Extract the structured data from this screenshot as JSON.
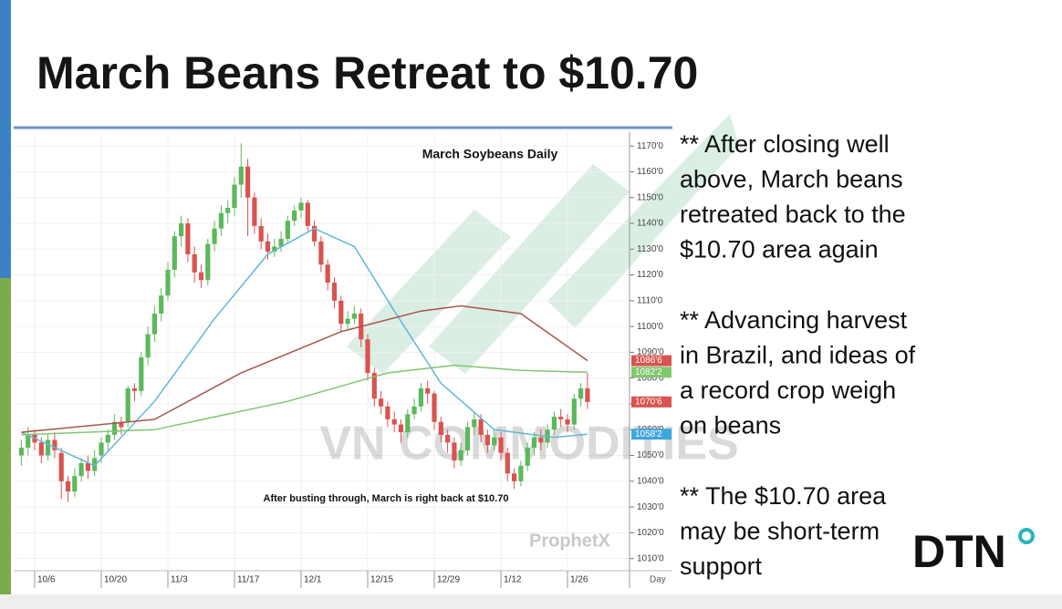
{
  "slide": {
    "title": "March Beans Retreat to $10.70",
    "bullets": [
      [
        "** After closing well",
        "above, March beans",
        "retreated back to the",
        "$10.70 area again"
      ],
      [
        "** Advancing harvest",
        "in Brazil, and ideas of",
        "a record crop weigh",
        "on beans"
      ],
      [
        "** The $10.70 area",
        "may be short-term",
        "support"
      ]
    ],
    "logo": "DTN",
    "watermark": "VN COMMODITIES"
  },
  "chart_data": {
    "type": "candlestick",
    "title": "March Soybeans Daily",
    "annotation": "After busting through, March is right back at $10.70",
    "source": "ProphetX",
    "interval": "Day",
    "categories": [
      null,
      null,
      "10/6",
      null,
      null,
      null,
      null,
      null,
      null,
      null,
      null,
      null,
      "10/20",
      null,
      null,
      null,
      null,
      null,
      null,
      null,
      null,
      null,
      "11/3",
      null,
      null,
      null,
      null,
      null,
      null,
      null,
      null,
      null,
      "11/17",
      null,
      null,
      null,
      null,
      null,
      null,
      null,
      null,
      null,
      "12/1",
      null,
      null,
      null,
      null,
      null,
      null,
      null,
      null,
      null,
      "12/15",
      null,
      null,
      null,
      null,
      null,
      null,
      null,
      null,
      null,
      "12/29",
      null,
      null,
      null,
      null,
      null,
      null,
      null,
      null,
      null,
      "1/12",
      null,
      null,
      null,
      null,
      null,
      null,
      null,
      null,
      null,
      "1/26",
      null,
      null,
      null
    ],
    "open": [
      1050,
      1053,
      1058,
      1055,
      1050,
      1056,
      1051,
      1040,
      1036,
      1042,
      1047,
      1044,
      1050,
      1055,
      1058,
      1063,
      1063,
      1076,
      1075,
      1088,
      1097,
      1105,
      1112,
      1122,
      1135,
      1140,
      1128,
      1121,
      1118,
      1132,
      1138,
      1144,
      1146,
      1155,
      1162,
      1150,
      1139,
      1133,
      1129,
      1131,
      1134,
      1141,
      1145,
      1148,
      1139,
      1133,
      1124,
      1117,
      1110,
      1101,
      1103,
      1105,
      1095,
      1082,
      1072,
      1069,
      1064,
      1062,
      1059,
      1066,
      1069,
      1076,
      1074,
      1063,
      1058,
      1055,
      1048,
      1052,
      1061,
      1064,
      1058,
      1054,
      1057,
      1051,
      1043,
      1040,
      1046,
      1053,
      1057,
      1055,
      1060,
      1065,
      1064,
      1062,
      1072,
      1076
    ],
    "high": [
      1056,
      1061,
      1060,
      1057,
      1058,
      1059,
      1053,
      1042,
      1045,
      1049,
      1050,
      1052,
      1057,
      1060,
      1066,
      1065,
      1077,
      1078,
      1090,
      1100,
      1108,
      1115,
      1125,
      1137,
      1143,
      1142,
      1131,
      1124,
      1134,
      1141,
      1147,
      1149,
      1158,
      1171,
      1165,
      1152,
      1142,
      1136,
      1134,
      1137,
      1143,
      1147,
      1150,
      1149,
      1141,
      1135,
      1126,
      1119,
      1112,
      1106,
      1108,
      1107,
      1097,
      1084,
      1075,
      1071,
      1067,
      1064,
      1068,
      1072,
      1078,
      1079,
      1075,
      1065,
      1060,
      1057,
      1055,
      1063,
      1067,
      1066,
      1060,
      1060,
      1059,
      1053,
      1045,
      1048,
      1055,
      1059,
      1060,
      1062,
      1067,
      1068,
      1066,
      1074,
      1078,
      1082
    ],
    "low": [
      1046,
      1050,
      1052,
      1047,
      1048,
      1049,
      1033,
      1032,
      1034,
      1040,
      1041,
      1042,
      1047,
      1052,
      1056,
      1058,
      1061,
      1071,
      1073,
      1085,
      1094,
      1102,
      1110,
      1119,
      1131,
      1125,
      1117,
      1115,
      1116,
      1129,
      1135,
      1140,
      1143,
      1150,
      1135,
      1136,
      1130,
      1126,
      1127,
      1129,
      1132,
      1139,
      1142,
      1137,
      1131,
      1121,
      1114,
      1107,
      1098,
      1099,
      1101,
      1092,
      1079,
      1069,
      1066,
      1061,
      1059,
      1055,
      1057,
      1064,
      1067,
      1070,
      1060,
      1055,
      1051,
      1045,
      1046,
      1050,
      1058,
      1055,
      1051,
      1052,
      1048,
      1040,
      1037,
      1038,
      1044,
      1050,
      1052,
      1053,
      1058,
      1061,
      1059,
      1060,
      1069,
      1068
    ],
    "close": [
      1053,
      1058,
      1055,
      1050,
      1056,
      1052,
      1040,
      1036,
      1042,
      1047,
      1044,
      1049,
      1055,
      1058,
      1063,
      1061,
      1076,
      1075,
      1088,
      1097,
      1105,
      1112,
      1122,
      1135,
      1140,
      1128,
      1121,
      1118,
      1132,
      1138,
      1144,
      1146,
      1155,
      1162,
      1150,
      1139,
      1133,
      1129,
      1131,
      1134,
      1141,
      1145,
      1148,
      1139,
      1133,
      1124,
      1117,
      1110,
      1101,
      1103,
      1105,
      1095,
      1082,
      1072,
      1069,
      1064,
      1062,
      1059,
      1066,
      1069,
      1076,
      1074,
      1063,
      1058,
      1055,
      1048,
      1052,
      1061,
      1064,
      1058,
      1054,
      1057,
      1051,
      1043,
      1040,
      1046,
      1053,
      1057,
      1055,
      1060,
      1065,
      1064,
      1062,
      1072,
      1076,
      1070.75
    ],
    "up_color": "#5cb85c",
    "down_color": "#d9534f",
    "series": [
      {
        "color": "#62b7d6",
        "x": [
          0,
          11,
          20,
          29,
          37,
          44,
          50,
          56,
          63,
          71,
          80,
          85
        ],
        "values": [
          1059,
          1046,
          1071,
          1103,
          1128,
          1138,
          1131,
          1106,
          1078,
          1060,
          1057,
          1058.25
        ]
      },
      {
        "color": "#a8554c",
        "x": [
          0,
          20,
          33,
          48,
          60,
          66,
          75,
          85
        ],
        "values": [
          1059,
          1064,
          1082,
          1098,
          1106,
          1108,
          1105,
          1086.75
        ]
      },
      {
        "color": "#80c66e",
        "x": [
          0,
          20,
          40,
          55,
          65,
          75,
          85
        ],
        "values": [
          1058,
          1060,
          1071,
          1082,
          1085,
          1083,
          1082.25
        ]
      }
    ],
    "price_tags": [
      {
        "value": 1086.75,
        "label": "1086'6",
        "color": "#d9534f"
      },
      {
        "value": 1082.25,
        "label": "1082'2",
        "color": "#80c66e"
      },
      {
        "value": 1070.75,
        "label": "1070'6",
        "color": "#d9534f"
      },
      {
        "value": 1058.25,
        "label": "1058'2",
        "color": "#3fa6dc"
      }
    ],
    "ylim": [
      1006,
      1175
    ],
    "yticks": [
      {
        "value": 1010,
        "label": "1010'0"
      },
      {
        "value": 1020,
        "label": "1020'0"
      },
      {
        "value": 1030,
        "label": "1030'0"
      },
      {
        "value": 1040,
        "label": "1040'0"
      },
      {
        "value": 1050,
        "label": "1050'0"
      },
      {
        "value": 1060,
        "label": "1060'0"
      },
      {
        "value": 1070,
        "label": "1070'0"
      },
      {
        "value": 1080,
        "label": "1080'0"
      },
      {
        "value": 1090,
        "label": "1090'0"
      },
      {
        "value": 1100,
        "label": "1100'0"
      },
      {
        "value": 1110,
        "label": "1110'0"
      },
      {
        "value": 1120,
        "label": "1120'0"
      },
      {
        "value": 1130,
        "label": "1130'0"
      },
      {
        "value": 1140,
        "label": "1140'0"
      },
      {
        "value": 1150,
        "label": "1150'0"
      },
      {
        "value": 1160,
        "label": "1160'0"
      },
      {
        "value": 1170,
        "label": "1170'0"
      }
    ],
    "grid": true
  }
}
